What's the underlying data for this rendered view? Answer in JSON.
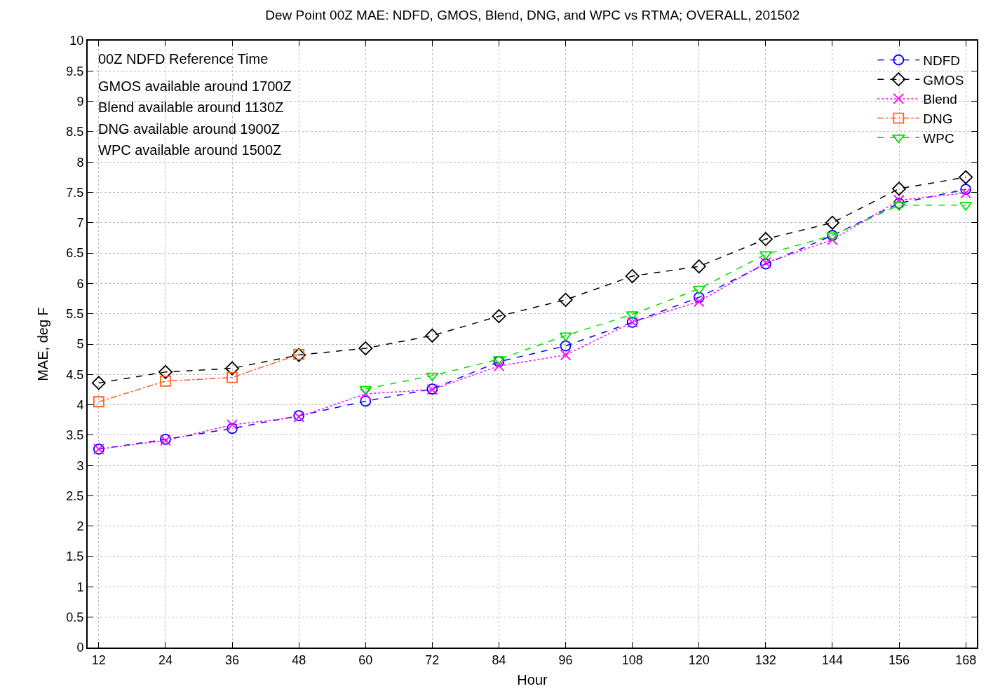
{
  "chart_data": {
    "type": "line",
    "title": "Dew Point 00Z MAE: NDFD, GMOS, Blend, DNG, and WPC vs RTMA; OVERALL, 201502",
    "xlabel": "Hour",
    "ylabel": "MAE, deg F",
    "x": [
      12,
      24,
      36,
      48,
      60,
      72,
      84,
      96,
      108,
      120,
      132,
      144,
      156,
      168
    ],
    "series": [
      {
        "name": "NDFD",
        "color": "#0000ff",
        "marker": "circle",
        "line_style": "dashed",
        "values": [
          3.27,
          3.43,
          3.61,
          3.82,
          4.06,
          4.26,
          4.71,
          4.97,
          5.36,
          5.77,
          6.32,
          6.79,
          7.32,
          7.55
        ]
      },
      {
        "name": "GMOS",
        "color": "#000000",
        "marker": "diamond",
        "line_style": "dashed",
        "values": [
          4.36,
          4.54,
          4.6,
          4.82,
          4.93,
          5.14,
          5.46,
          5.73,
          6.12,
          6.28,
          6.73,
          7.0,
          7.56,
          7.75
        ]
      },
      {
        "name": "Blend",
        "color": "#ff00ff",
        "marker": "cross",
        "line_style": "dotted",
        "values": [
          3.27,
          3.41,
          3.67,
          3.8,
          4.18,
          4.25,
          4.64,
          4.82,
          5.36,
          5.7,
          6.34,
          6.72,
          7.37,
          7.49
        ]
      },
      {
        "name": "DNG",
        "color": "#ff6020",
        "marker": "square",
        "line_style": "dashdot",
        "values": [
          4.05,
          4.39,
          4.45,
          4.83,
          null,
          null,
          null,
          null,
          null,
          null,
          null,
          null,
          null,
          null
        ]
      },
      {
        "name": "WPC",
        "color": "#00dd00",
        "marker": "triangle-down",
        "line_style": "dashed",
        "values": [
          null,
          null,
          null,
          null,
          4.26,
          4.48,
          4.75,
          5.14,
          5.49,
          5.91,
          6.48,
          6.79,
          7.29,
          7.29
        ]
      }
    ],
    "xlim": [
      10,
      170
    ],
    "xticks": [
      12,
      24,
      36,
      48,
      60,
      72,
      84,
      96,
      108,
      120,
      132,
      144,
      156,
      168
    ],
    "ylim": [
      0,
      10
    ],
    "yticks": [
      0,
      0.5,
      1,
      1.5,
      2,
      2.5,
      3,
      3.5,
      4,
      4.5,
      5,
      5.5,
      6,
      6.5,
      7,
      7.5,
      8,
      8.5,
      9,
      9.5,
      10
    ],
    "grid": true,
    "legend": "top right",
    "annotations": [
      "00Z NDFD Reference Time",
      "GMOS available around 1700Z",
      "Blend available around 1130Z",
      "DNG available around 1900Z",
      "WPC available around 1500Z"
    ]
  }
}
